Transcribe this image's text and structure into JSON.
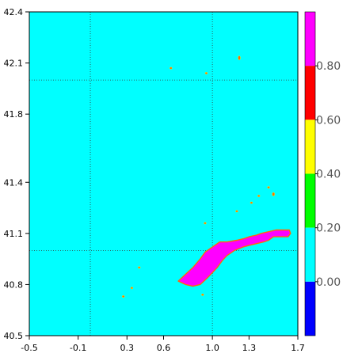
{
  "map": {
    "lon_range": [
      -0.5,
      1.7
    ],
    "lat_range": [
      40.5,
      42.4
    ],
    "x_ticks": [
      -0.5,
      -0.1,
      0.3,
      0.6,
      1.0,
      1.3,
      1.7
    ],
    "x_tick_labels": [
      "-0.5",
      "-0.1",
      "0.3",
      "0.6",
      "1.0",
      "1.3",
      "1.7"
    ],
    "y_ticks": [
      40.5,
      40.8,
      41.1,
      41.4,
      41.8,
      42.1,
      42.4
    ],
    "y_tick_labels": [
      "40.5",
      "40.8",
      "41.1",
      "41.4",
      "41.8",
      "42.1",
      "42.4"
    ],
    "background_color": "#00ffff",
    "grid_color": "#3a3a3a",
    "meridians": [
      0.0,
      1.0
    ],
    "parallels": [
      41.0,
      42.0
    ],
    "main_region": {
      "fill_color": "#ff00ff",
      "edge_color": "#ff6a00",
      "polygon": [
        [
          0.72,
          40.82
        ],
        [
          0.78,
          40.86
        ],
        [
          0.84,
          40.9
        ],
        [
          0.9,
          40.95
        ],
        [
          0.94,
          40.99
        ],
        [
          1.0,
          41.02
        ],
        [
          1.06,
          41.05
        ],
        [
          1.12,
          41.05
        ],
        [
          1.2,
          41.06
        ],
        [
          1.26,
          41.07
        ],
        [
          1.3,
          41.08
        ],
        [
          1.36,
          41.09
        ],
        [
          1.4,
          41.1
        ],
        [
          1.46,
          41.11
        ],
        [
          1.52,
          41.12
        ],
        [
          1.58,
          41.12
        ],
        [
          1.63,
          41.12
        ],
        [
          1.64,
          41.1
        ],
        [
          1.62,
          41.08
        ],
        [
          1.56,
          41.08
        ],
        [
          1.5,
          41.08
        ],
        [
          1.46,
          41.06
        ],
        [
          1.42,
          41.05
        ],
        [
          1.36,
          41.04
        ],
        [
          1.3,
          41.03
        ],
        [
          1.25,
          41.02
        ],
        [
          1.18,
          41.0
        ],
        [
          1.12,
          40.97
        ],
        [
          1.08,
          40.94
        ],
        [
          1.04,
          40.9
        ],
        [
          1.0,
          40.87
        ],
        [
          0.96,
          40.84
        ],
        [
          0.9,
          40.8
        ],
        [
          0.84,
          40.79
        ],
        [
          0.78,
          40.8
        ]
      ]
    },
    "islands": [
      {
        "lon": 0.66,
        "lat": 42.07,
        "rx": 0.008,
        "ry": 0.006
      },
      {
        "lon": 0.95,
        "lat": 42.04,
        "rx": 0.006,
        "ry": 0.005
      },
      {
        "lon": 1.22,
        "lat": 42.13,
        "rx": 0.006,
        "ry": 0.012
      },
      {
        "lon": 1.46,
        "lat": 41.37,
        "rx": 0.008,
        "ry": 0.006
      },
      {
        "lon": 1.5,
        "lat": 41.33,
        "rx": 0.01,
        "ry": 0.01
      },
      {
        "lon": 1.38,
        "lat": 41.32,
        "rx": 0.008,
        "ry": 0.005
      },
      {
        "lon": 1.32,
        "lat": 41.28,
        "rx": 0.006,
        "ry": 0.005
      },
      {
        "lon": 1.2,
        "lat": 41.23,
        "rx": 0.006,
        "ry": 0.005
      },
      {
        "lon": 0.94,
        "lat": 41.16,
        "rx": 0.006,
        "ry": 0.005
      },
      {
        "lon": 0.4,
        "lat": 40.9,
        "rx": 0.006,
        "ry": 0.005
      },
      {
        "lon": 0.34,
        "lat": 40.78,
        "rx": 0.008,
        "ry": 0.005
      },
      {
        "lon": 0.27,
        "lat": 40.73,
        "rx": 0.01,
        "ry": 0.006
      },
      {
        "lon": 0.92,
        "lat": 40.74,
        "rx": 0.006,
        "ry": 0.005
      }
    ]
  },
  "colorbar": {
    "colors": [
      "#0000ff",
      "#00ffff",
      "#00ff00",
      "#ffff00",
      "#ff0000",
      "#ff00ff"
    ],
    "levels": [
      0.0,
      0.2,
      0.4,
      0.6,
      0.8
    ],
    "labels": [
      "0.00",
      "0.20",
      "0.40",
      "0.60",
      "0.80"
    ]
  }
}
